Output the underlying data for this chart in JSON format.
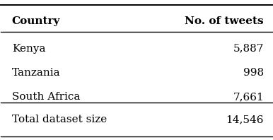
{
  "col1_header": "Country",
  "col2_header": "No. of tweets",
  "rows": [
    [
      "Kenya",
      "5,887"
    ],
    [
      "Tanzania",
      "998"
    ],
    [
      "South Africa",
      "7,661"
    ]
  ],
  "total_label": "Total dataset size",
  "total_value": "14,546",
  "background_color": "#ffffff",
  "text_color": "#000000",
  "font_size": 11,
  "header_font_size": 11
}
